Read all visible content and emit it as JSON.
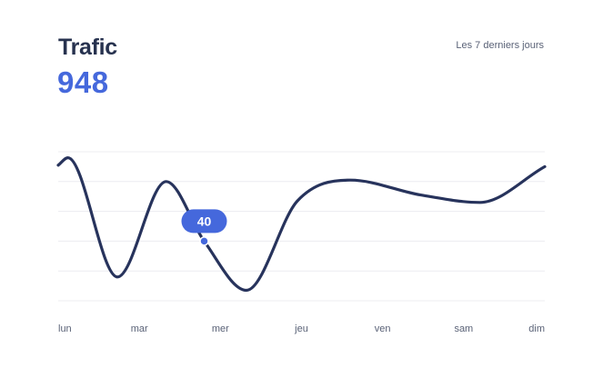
{
  "header": {
    "title": "Trafic",
    "total": "948",
    "period": "Les 7 derniers jours"
  },
  "colors": {
    "line": "#27335c",
    "accent": "#4568dc",
    "grid": "#ececf0",
    "tick": "#5a6277"
  },
  "chart_data": {
    "type": "line",
    "categories": [
      "lun",
      "mar",
      "mer",
      "jeu",
      "ven",
      "sam",
      "dim"
    ],
    "ylim": [
      0,
      100
    ],
    "grid": true,
    "gridlines": 6,
    "series": [
      {
        "x": [
          0,
          0.12,
          0.73,
          1.33,
          1.8,
          2.32,
          2.95,
          3.6,
          4.47,
          5.2,
          6.0
        ],
        "values": [
          91,
          96,
          16,
          80,
          40,
          7,
          67,
          81,
          71,
          66,
          90
        ]
      }
    ],
    "highlight": {
      "x": 1.8,
      "value": 40,
      "label": "40"
    }
  }
}
